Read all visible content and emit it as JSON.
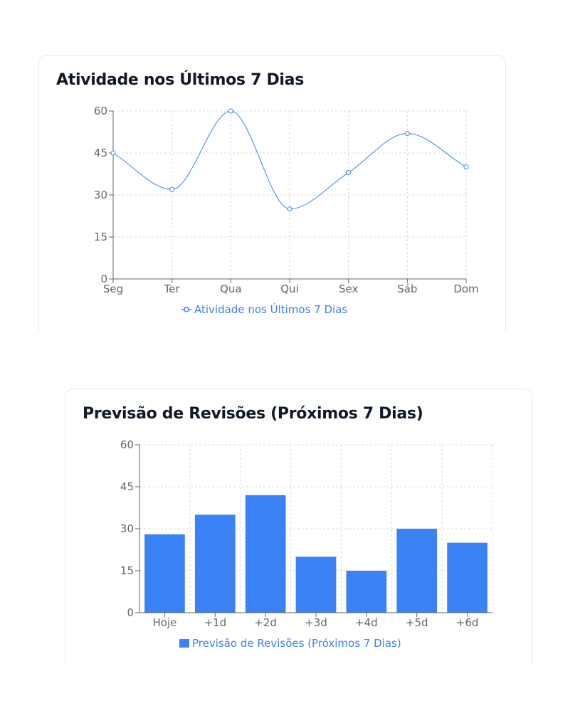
{
  "colors": {
    "accent": "#3b82f6",
    "grid": "#d9d9d9",
    "axis": "#666666",
    "title": "#111827"
  },
  "activity_card": {
    "title": "Atividade nos Últimos 7 Dias"
  },
  "forecast_card": {
    "title": "Previsão de Revisões (Próximos 7 Dias)"
  },
  "chart_data": [
    {
      "type": "line",
      "title": "Atividade nos Últimos 7 Dias",
      "categories": [
        "Seg",
        "Ter",
        "Qua",
        "Qui",
        "Sex",
        "Sáb",
        "Dom"
      ],
      "series": [
        {
          "name": "Atividade nos Últimos 7 Dias",
          "values": [
            45,
            32,
            60,
            25,
            38,
            52,
            40
          ]
        }
      ],
      "ylim": [
        0,
        60
      ],
      "yticks": [
        0,
        15,
        30,
        45,
        60
      ],
      "ytick_labels": [
        "0",
        "15",
        "30",
        "45",
        "60"
      ],
      "grid": true,
      "legend": "bottom-center",
      "curve": "smooth",
      "color": "#3b82f6"
    },
    {
      "type": "bar",
      "title": "Previsão de Revisões (Próximos 7 Dias)",
      "categories": [
        "Hoje",
        "+1d",
        "+2d",
        "+3d",
        "+4d",
        "+5d",
        "+6d"
      ],
      "series": [
        {
          "name": "Previsão de Revisões (Próximos 7 Dias)",
          "values": [
            28,
            35,
            42,
            20,
            15,
            30,
            25
          ]
        }
      ],
      "ylim": [
        0,
        60
      ],
      "yticks": [
        0,
        15,
        30,
        45,
        60
      ],
      "ytick_labels": [
        "0",
        "15",
        "30",
        "45",
        "60"
      ],
      "grid": true,
      "legend": "bottom-center",
      "color": "#3b82f6"
    }
  ]
}
